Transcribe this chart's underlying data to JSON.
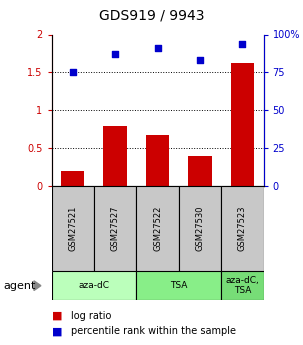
{
  "title": "GDS919 / 9943",
  "categories": [
    "GSM27521",
    "GSM27527",
    "GSM27522",
    "GSM27530",
    "GSM27523"
  ],
  "log_ratio": [
    0.2,
    0.8,
    0.67,
    0.4,
    1.63
  ],
  "percentile_rank": [
    75,
    87,
    91,
    83,
    94
  ],
  "bar_color": "#cc0000",
  "dot_color": "#0000cc",
  "ylim_left": [
    0,
    2
  ],
  "ylim_right": [
    0,
    100
  ],
  "yticks_left": [
    0,
    0.5,
    1.0,
    1.5,
    2.0
  ],
  "yticks_right": [
    0,
    25,
    50,
    75,
    100
  ],
  "ytick_labels_left": [
    "0",
    "0.5",
    "1",
    "1.5",
    "2"
  ],
  "ytick_labels_right": [
    "0",
    "25",
    "50",
    "75",
    "100%"
  ],
  "hlines": [
    0.5,
    1.0,
    1.5
  ],
  "agent_groups": [
    {
      "label": "aza-dC",
      "span": [
        0,
        2
      ],
      "color": "#bbffbb"
    },
    {
      "label": "TSA",
      "span": [
        2,
        4
      ],
      "color": "#88ee88"
    },
    {
      "label": "aza-dC,\nTSA",
      "span": [
        4,
        5
      ],
      "color": "#77dd77"
    }
  ],
  "legend_red_label": "log ratio",
  "legend_blue_label": "percentile rank within the sample",
  "agent_label": "agent",
  "left_tick_color": "#cc0000",
  "right_tick_color": "#0000cc",
  "bar_gray": "#c8c8c8"
}
